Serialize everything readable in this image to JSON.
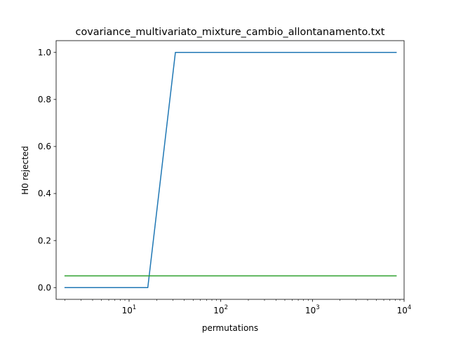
{
  "chart_data": {
    "type": "line",
    "title": "covariance_multivariato_mixture_cambio_allontanamento.txt",
    "xlabel": "permutations",
    "ylabel": "H0 rejected",
    "xscale": "log",
    "xlim": [
      1.6,
      10000
    ],
    "ylim": [
      -0.05,
      1.05
    ],
    "grid": false,
    "x_major_ticks": [
      {
        "value": 10,
        "base": "10",
        "exp": "1"
      },
      {
        "value": 100,
        "base": "10",
        "exp": "2"
      },
      {
        "value": 1000,
        "base": "10",
        "exp": "3"
      },
      {
        "value": 10000,
        "base": "10",
        "exp": "4"
      }
    ],
    "y_ticks": [
      {
        "value": 0.0,
        "label": "0.0"
      },
      {
        "value": 0.2,
        "label": "0.2"
      },
      {
        "value": 0.4,
        "label": "0.4"
      },
      {
        "value": 0.6,
        "label": "0.6"
      },
      {
        "value": 0.8,
        "label": "0.8"
      },
      {
        "value": 1.0,
        "label": "1.0"
      }
    ],
    "series": [
      {
        "color": "#1f77b4",
        "x": [
          2,
          4,
          8,
          16,
          32,
          64,
          128,
          256,
          512,
          1024,
          2048,
          4096,
          8192
        ],
        "y": [
          0,
          0,
          0,
          0,
          1,
          1,
          1,
          1,
          1,
          1,
          1,
          1,
          1
        ]
      },
      {
        "color": "#2ca02c",
        "x": [
          2,
          8192
        ],
        "y": [
          0.05,
          0.05
        ]
      }
    ]
  }
}
